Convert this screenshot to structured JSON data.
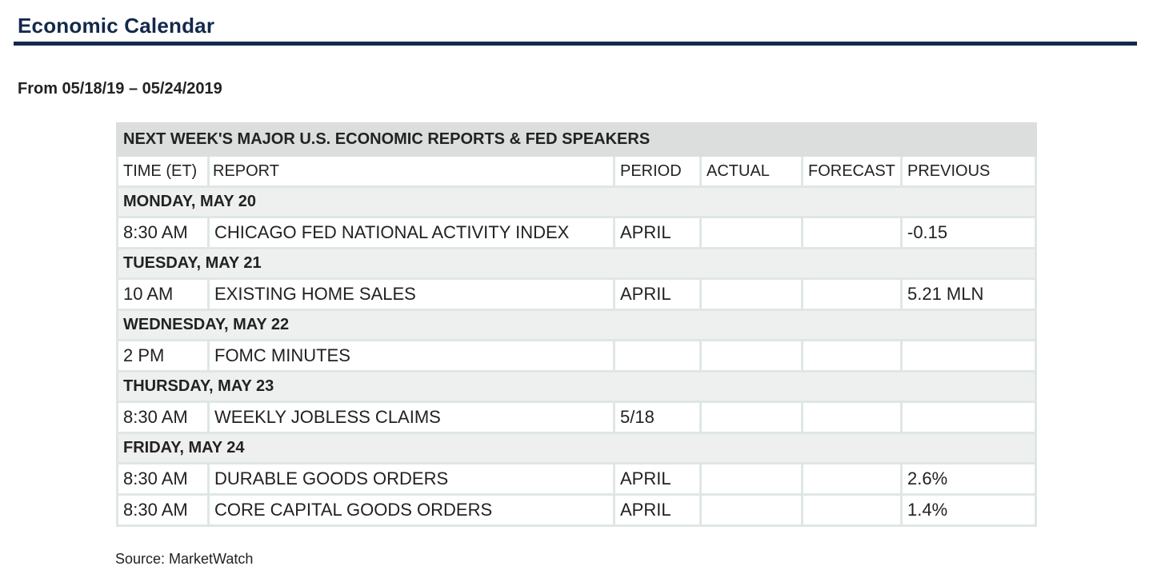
{
  "page": {
    "title": "Economic Calendar",
    "date_range": "From 05/18/19 – 05/24/2019",
    "source": "Source: MarketWatch",
    "accent_color": "#13294b"
  },
  "table": {
    "heading": "NEXT WEEK'S MAJOR U.S. ECONOMIC REPORTS & FED SPEAKERS",
    "columns": [
      "TIME (ET)",
      "REPORT",
      "PERIOD",
      "ACTUAL",
      "FORECAST",
      "PREVIOUS"
    ],
    "days": [
      {
        "label": "MONDAY, MAY 20",
        "rows": [
          {
            "time": "8:30 AM",
            "report": "CHICAGO FED NATIONAL ACTIVITY INDEX",
            "period": "APRIL",
            "actual": "",
            "forecast": "",
            "previous": "-0.15"
          }
        ]
      },
      {
        "label": "TUESDAY, MAY 21",
        "rows": [
          {
            "time": "10 AM",
            "report": "EXISTING HOME SALES",
            "period": "APRIL",
            "actual": "",
            "forecast": "",
            "previous": "5.21 MLN"
          }
        ]
      },
      {
        "label": "WEDNESDAY, MAY 22",
        "rows": [
          {
            "time": "2 PM",
            "report": "FOMC MINUTES",
            "period": "",
            "actual": "",
            "forecast": "",
            "previous": ""
          }
        ]
      },
      {
        "label": "THURSDAY, MAY 23",
        "rows": [
          {
            "time": "8:30 AM",
            "report": "WEEKLY JOBLESS CLAIMS",
            "period": "5/18",
            "actual": "",
            "forecast": "",
            "previous": ""
          }
        ]
      },
      {
        "label": "FRIDAY, MAY 24",
        "rows": [
          {
            "time": "8:30 AM",
            "report": "DURABLE GOODS ORDERS",
            "period": "APRIL",
            "actual": "",
            "forecast": "",
            "previous": "2.6%"
          },
          {
            "time": "8:30 AM",
            "report": "CORE CAPITAL GOODS ORDERS",
            "period": "APRIL",
            "actual": "",
            "forecast": "",
            "previous": "1.4%"
          }
        ]
      }
    ]
  }
}
